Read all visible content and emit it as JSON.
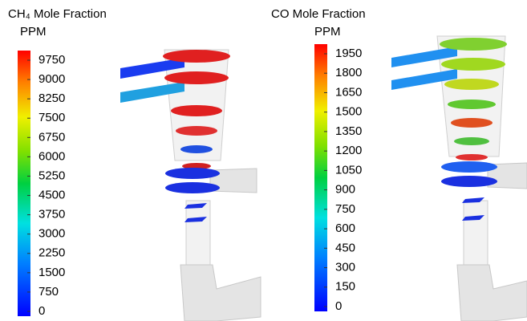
{
  "panels": [
    {
      "title": "CH₄ Mole Fraction",
      "unit": "PPM",
      "clim": [
        0,
        9750
      ],
      "ticks": [
        9750,
        9000,
        8250,
        7500,
        6750,
        6000,
        5250,
        4500,
        3750,
        3000,
        2250,
        1500,
        750,
        0
      ]
    },
    {
      "title": "CO Mole Fraction",
      "unit": "PPM",
      "clim": [
        0,
        1950
      ],
      "ticks": [
        1950,
        1800,
        1650,
        1500,
        1350,
        1200,
        1050,
        900,
        750,
        600,
        450,
        300,
        150,
        0
      ]
    }
  ]
}
